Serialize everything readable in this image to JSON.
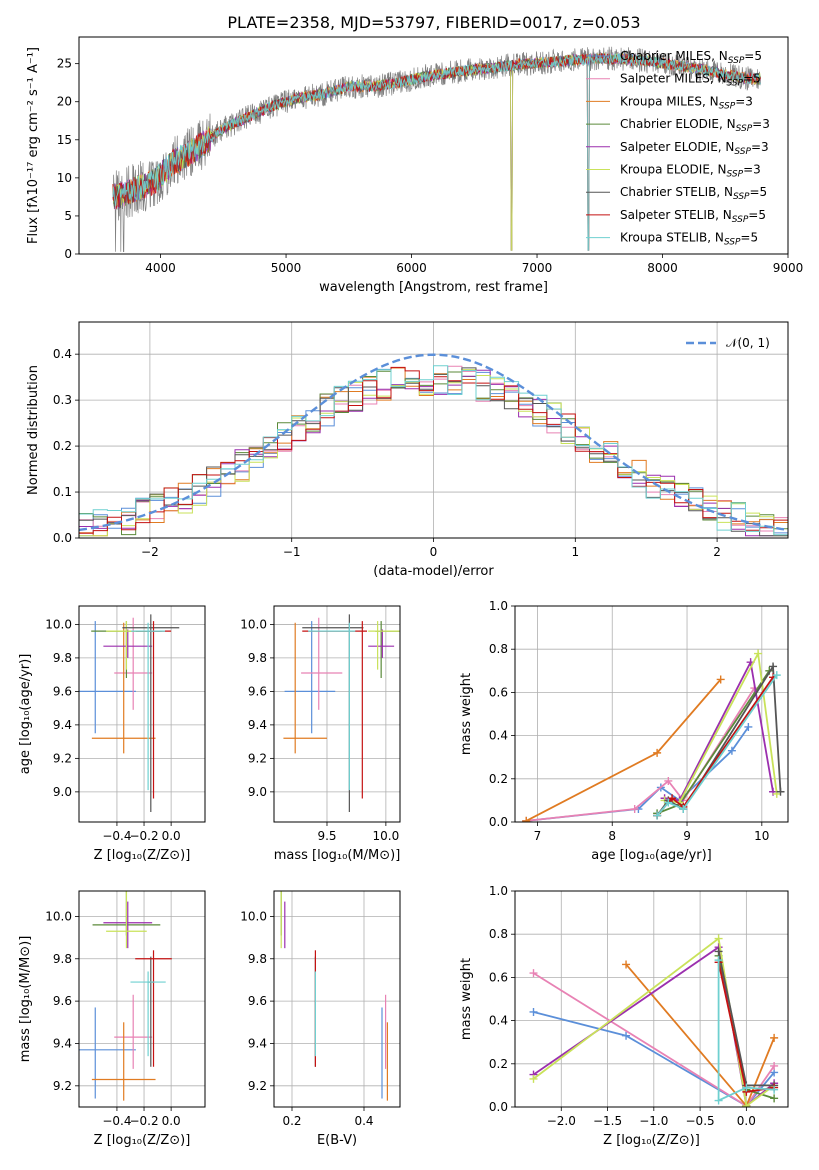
{
  "colors": {
    "Chabrier MILES": "#5b8fd9",
    "Salpeter MILES": "#e882b4",
    "Kroupa MILES": "#e07b22",
    "Chabrier ELODIE": "#5b8a3a",
    "Salpeter ELODIE": "#9b2fae",
    "Kroupa ELODIE": "#c9e25a",
    "Chabrier STELIB": "#555555",
    "Salpeter STELIB": "#c41212",
    "Kroupa STELIB": "#6fd0d0",
    "data": "#808080",
    "normal": "#5b8fd9"
  },
  "chart_data": [
    {
      "id": "spectrum",
      "type": "line",
      "title": "PLATE=2358, MJD=53797, FIBERID=0017, z=0.053",
      "xlabel": "wavelength [Angstrom, rest frame]",
      "ylabel": "Flux [fλ10⁻¹⁷ erg cm⁻² s⁻¹ A⁻¹]",
      "xlim": [
        3350,
        9000
      ],
      "ylim": [
        0,
        28.5
      ],
      "xticks": [
        "4000",
        "5000",
        "6000",
        "7000",
        "8000",
        "9000"
      ],
      "yticks": [
        "0",
        "5",
        "10",
        "15",
        "20",
        "25"
      ],
      "legend_position": "right",
      "legend": [
        {
          "text": "Chabrier MILES, N",
          "sub": "SSP",
          "tail": "=5"
        },
        {
          "text": "Salpeter MILES, N",
          "sub": "SSP",
          "tail": "=5"
        },
        {
          "text": "Kroupa MILES, N",
          "sub": "SSP",
          "tail": "=3"
        },
        {
          "text": "Chabrier ELODIE, N",
          "sub": "SSP",
          "tail": "=3"
        },
        {
          "text": "Salpeter ELODIE, N",
          "sub": "SSP",
          "tail": "=3"
        },
        {
          "text": "Kroupa ELODIE, N",
          "sub": "SSP",
          "tail": "=3"
        },
        {
          "text": "Chabrier STELIB, N",
          "sub": "SSP",
          "tail": "=5"
        },
        {
          "text": "Salpeter STELIB, N",
          "sub": "SSP",
          "tail": "=5"
        },
        {
          "text": "Kroupa STELIB, N",
          "sub": "SSP",
          "tail": "=5"
        }
      ],
      "continuum": {
        "x": [
          3650,
          3800,
          3950,
          4100,
          4300,
          4500,
          4700,
          4900,
          5100,
          5300,
          5500,
          5700,
          5900,
          6100,
          6300,
          6500,
          6700,
          6900,
          7100,
          7300,
          7500,
          7700,
          7900,
          8100,
          8300,
          8500,
          8700
        ],
        "y": [
          7.5,
          8.5,
          9.5,
          12,
          14,
          16.5,
          18,
          19.5,
          20.5,
          21,
          22,
          22,
          22.5,
          23.3,
          23.8,
          24.2,
          24.6,
          25,
          25.2,
          25.5,
          25.7,
          25.6,
          25.3,
          24.8,
          24.3,
          23.6,
          23
        ]
      }
    },
    {
      "id": "residuals",
      "type": "line",
      "xlabel": "(data-model)/error",
      "ylabel": "Normed distribution",
      "xlim": [
        -2.5,
        2.5
      ],
      "ylim": [
        0,
        0.47
      ],
      "xticks": [
        "−2",
        "−1",
        "0",
        "1",
        "2"
      ],
      "yticks": [
        "0.0",
        "0.1",
        "0.2",
        "0.3",
        "0.4"
      ],
      "legend": "𝒩(0, 1)",
      "legend_position": "top-right",
      "bin_width": 0.1
    },
    {
      "id": "age_vs_Z",
      "type": "scatter",
      "xlabel": "Z [log₁₀(Z/Z⊙)]",
      "ylabel": "age  [log₁₀(age/yr)]",
      "xlim": [
        -0.68,
        0.25
      ],
      "ylim": [
        8.82,
        10.11
      ],
      "xticks": [
        "−0.4",
        "−0.2",
        "0.0"
      ],
      "yticks": [
        "9.0",
        "9.2",
        "9.4",
        "9.6",
        "9.8",
        "10.0"
      ]
    },
    {
      "id": "age_vs_mass",
      "type": "scatter",
      "xlabel": "mass [log₁₀(M/M⊙)]",
      "xlim": [
        9.05,
        10.12
      ],
      "ylim": [
        8.82,
        10.11
      ],
      "xticks": [
        "9.5",
        "10.0"
      ],
      "yticks": [
        "9.0",
        "9.2",
        "9.4",
        "9.6",
        "9.8",
        "10.0"
      ]
    },
    {
      "id": "weight_vs_age",
      "type": "line",
      "xlabel": "age  [log₁₀(age/yr)]",
      "ylabel": "mass weight",
      "xlim": [
        6.7,
        10.35
      ],
      "ylim": [
        0,
        1
      ],
      "xticks": [
        "7",
        "8",
        "9",
        "10"
      ],
      "yticks": [
        "0.0",
        "0.2",
        "0.4",
        "0.6",
        "0.8",
        "1.0"
      ],
      "series": [
        {
          "name": "Chabrier MILES",
          "x": [
            6.85,
            8.35,
            8.65,
            8.9,
            9.6,
            9.82
          ],
          "y": [
            0.005,
            0.06,
            0.16,
            0.1,
            0.33,
            0.44
          ]
        },
        {
          "name": "Salpeter MILES",
          "x": [
            6.85,
            8.3,
            8.75,
            8.95,
            9.9
          ],
          "y": [
            0.005,
            0.06,
            0.19,
            0.1,
            0.62
          ]
        },
        {
          "name": "Kroupa MILES",
          "x": [
            6.85,
            8.6,
            9.45
          ],
          "y": [
            0.005,
            0.32,
            0.66
          ]
        },
        {
          "name": "Chabrier ELODIE",
          "x": [
            8.6,
            8.9,
            10.1
          ],
          "y": [
            0.04,
            0.08,
            0.7
          ]
        },
        {
          "name": "Salpeter ELODIE",
          "x": [
            8.7,
            8.9,
            9.85,
            10.15
          ],
          "y": [
            0.11,
            0.1,
            0.74,
            0.14
          ]
        },
        {
          "name": "Kroupa ELODIE",
          "x": [
            8.7,
            8.9,
            9.95,
            10.2
          ],
          "y": [
            0.1,
            0.09,
            0.78,
            0.13
          ]
        },
        {
          "name": "Chabrier STELIB",
          "x": [
            8.6,
            8.75,
            8.95,
            10.15,
            10.25
          ],
          "y": [
            0.03,
            0.1,
            0.06,
            0.72,
            0.14
          ]
        },
        {
          "name": "Salpeter STELIB",
          "x": [
            8.6,
            8.8,
            8.95,
            10.15
          ],
          "y": [
            0.03,
            0.11,
            0.07,
            0.67
          ]
        },
        {
          "name": "Kroupa STELIB",
          "x": [
            8.6,
            8.75,
            8.95,
            10.2
          ],
          "y": [
            0.03,
            0.09,
            0.06,
            0.68
          ]
        }
      ]
    },
    {
      "id": "mass_vs_Z",
      "type": "scatter",
      "xlabel": "Z [log₁₀(Z/Z⊙)]",
      "ylabel": "mass [log₁₀(M/M⊙)]",
      "xlim": [
        -0.68,
        0.25
      ],
      "ylim": [
        9.1,
        10.12
      ],
      "xticks": [
        "−0.4",
        "−0.2",
        "0.0"
      ],
      "yticks": [
        "9.2",
        "9.4",
        "9.6",
        "9.8",
        "10.0"
      ]
    },
    {
      "id": "mass_vs_EBV",
      "type": "scatter",
      "xlabel": "E(B-V)",
      "xlim": [
        0.15,
        0.5
      ],
      "ylim": [
        9.1,
        10.12
      ],
      "xticks": [
        "0.2",
        "0.4"
      ],
      "yticks": [
        "9.2",
        "9.4",
        "9.6",
        "9.8",
        "10.0"
      ]
    },
    {
      "id": "weight_vs_Z",
      "type": "line",
      "xlabel": "Z [log₁₀(Z/Z⊙)]",
      "ylabel": "mass weight",
      "xlim": [
        -2.5,
        0.45
      ],
      "ylim": [
        0,
        1
      ],
      "xticks": [
        "−2.0",
        "−1.5",
        "−1.0",
        "−0.5",
        "0.0"
      ],
      "yticks": [
        "0.0",
        "0.2",
        "0.4",
        "0.6",
        "0.8",
        "1.0"
      ],
      "series": [
        {
          "name": "Chabrier MILES",
          "x": [
            -2.3,
            -1.3,
            0.0,
            0.3
          ],
          "y": [
            0.44,
            0.33,
            0.005,
            0.16
          ]
        },
        {
          "name": "Salpeter MILES",
          "x": [
            -2.3,
            0.0,
            0.3
          ],
          "y": [
            0.62,
            0.005,
            0.19
          ]
        },
        {
          "name": "Kroupa MILES",
          "x": [
            -1.3,
            0.0,
            0.3
          ],
          "y": [
            0.66,
            0.005,
            0.32
          ]
        },
        {
          "name": "Chabrier ELODIE",
          "x": [
            -0.3,
            0.0,
            0.3
          ],
          "y": [
            0.7,
            0.08,
            0.04
          ]
        },
        {
          "name": "Salpeter ELODIE",
          "x": [
            -2.3,
            -0.3,
            0.0,
            0.3
          ],
          "y": [
            0.15,
            0.74,
            0.005,
            0.11
          ]
        },
        {
          "name": "Kroupa ELODIE",
          "x": [
            -2.3,
            -0.3,
            0.0,
            0.3
          ],
          "y": [
            0.13,
            0.78,
            0.005,
            0.1
          ]
        },
        {
          "name": "Chabrier STELIB",
          "x": [
            -0.3,
            0.0,
            0.3
          ],
          "y": [
            0.72,
            0.1,
            0.1
          ]
        },
        {
          "name": "Salpeter STELIB",
          "x": [
            -0.3,
            0.0,
            0.3
          ],
          "y": [
            0.67,
            0.07,
            0.09
          ]
        },
        {
          "name": "Kroupa STELIB",
          "x": [
            -0.3,
            -0.3,
            0.0,
            0.3
          ],
          "y": [
            0.68,
            0.03,
            0.09,
            0.08
          ]
        }
      ]
    }
  ],
  "model_fits": [
    {
      "name": "Chabrier MILES",
      "Z": -0.56,
      "Zerr": 0.6,
      "age": 9.6,
      "ageerr": [
        0.25,
        0.42
      ],
      "mass": 9.37,
      "masserr": [
        0.23,
        0.2
      ],
      "massZerr": 0.6,
      "ebv": 0.45,
      "ebverr": [
        0.23,
        0.21
      ]
    },
    {
      "name": "Salpeter MILES",
      "Z": -0.28,
      "Zerr": 0.28,
      "age": 9.71,
      "ageerr": [
        0.22,
        0.33
      ],
      "mass": 9.43,
      "masserr": [
        0.15,
        0.2
      ],
      "massZerr": 0.28,
      "ebv": 0.46,
      "ebverr": [
        0.3,
        0.2
      ]
    },
    {
      "name": "Kroupa MILES",
      "Z": -0.35,
      "Zerr": 0.47,
      "age": 9.32,
      "ageerr": [
        0.09,
        0.69
      ],
      "mass": 9.23,
      "masserr": [
        0.1,
        0.27
      ],
      "massZerr": 0.47,
      "ebv": 0.465,
      "ebverr": [
        0.1,
        0.3
      ]
    },
    {
      "name": "Chabrier ELODIE",
      "Z": -0.33,
      "Zerr": 0.52,
      "age": 9.96,
      "ageerr": [
        0.28,
        0.06
      ],
      "mass": 9.96,
      "masserr": [
        0.05,
        0.22
      ],
      "massZerr": 0.5,
      "ebv": 0.17,
      "ebverr": [
        0.05,
        0.26
      ]
    },
    {
      "name": "Salpeter ELODIE",
      "Z": -0.32,
      "Zerr": 0.36,
      "age": 9.87,
      "ageerr": [
        0.07,
        0.1
      ],
      "mass": 9.97,
      "masserr": [
        0.12,
        0.1
      ],
      "massZerr": 0.36,
      "ebv": 0.18,
      "ebverr": [
        0.02,
        0.3
      ]
    },
    {
      "name": "Kroupa ELODIE",
      "Z": -0.33,
      "Zerr": 0.3,
      "age": 9.96,
      "ageerr": [
        0.23,
        0.06
      ],
      "mass": 9.93,
      "masserr": [
        0.08,
        0.2
      ],
      "massZerr": 0.3,
      "ebv": 0.17,
      "ebverr": [
        0.03,
        0.23
      ]
    },
    {
      "name": "Chabrier STELIB",
      "Z": -0.15,
      "Zerr": 0.42,
      "age": 9.98,
      "ageerr": [
        1.1,
        0.08
      ],
      "mass": 9.69,
      "masserr": [
        0.4,
        0.12
      ],
      "massZerr": 0.05,
      "ebv": 0.265,
      "ebverr": [
        0.08,
        0.1
      ]
    },
    {
      "name": "Salpeter STELIB",
      "Z": -0.13,
      "Zerr": 0.26,
      "age": 9.96,
      "ageerr": [
        1.0,
        0.06
      ],
      "mass": 9.8,
      "masserr": [
        0.51,
        0.04
      ],
      "massZerr": 0.27,
      "ebv": 0.265,
      "ebverr": [
        0.08,
        0.1
      ]
    },
    {
      "name": "Kroupa STELIB",
      "Z": -0.17,
      "Zerr": 0.25,
      "age": 9.96,
      "ageerr": [
        0.95,
        0.05
      ],
      "mass": 9.69,
      "masserr": [
        0.35,
        0.05
      ],
      "massZerr": 0.26,
      "ebv": 0.265,
      "ebverr": [
        0.07,
        0.1
      ]
    }
  ]
}
